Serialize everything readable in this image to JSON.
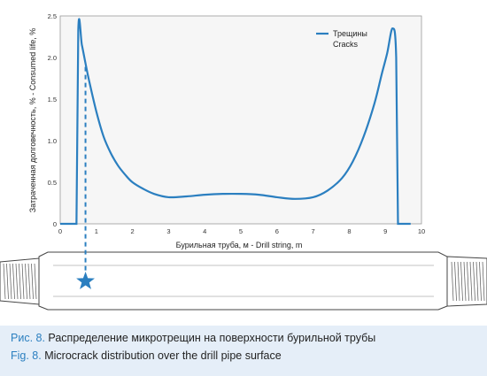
{
  "chart_data": {
    "type": "line",
    "xlabel": "Бурильная труба, м - Drill string, m",
    "ylabel": "Затраченная долговечность, % - Consumed life, %",
    "xlim": [
      0,
      10
    ],
    "ylim": [
      0,
      2.5
    ],
    "xticks": [
      "0",
      "1",
      "2",
      "3",
      "4",
      "5",
      "6",
      "7",
      "8",
      "9",
      "10"
    ],
    "yticks": [
      "0",
      "0.5",
      "1.0",
      "1.5",
      "2.0",
      "2.5"
    ],
    "grid": false,
    "legend_position": "top-right",
    "series": [
      {
        "name_ru": "Трещины",
        "name_en": "Cracks",
        "color": "#2b7fc0",
        "x": [
          0.0,
          0.45,
          0.5,
          0.6,
          0.7,
          0.8,
          1.0,
          1.2,
          1.4,
          1.6,
          1.8,
          2.0,
          2.3,
          2.6,
          3.0,
          3.5,
          4.0,
          4.5,
          5.0,
          5.5,
          6.0,
          6.5,
          7.0,
          7.4,
          7.8,
          8.1,
          8.4,
          8.7,
          8.9,
          9.05,
          9.2,
          9.3,
          9.35,
          9.4,
          9.7
        ],
        "y": [
          0.0,
          0.0,
          2.33,
          2.15,
          1.93,
          1.72,
          1.35,
          1.05,
          0.85,
          0.7,
          0.59,
          0.5,
          0.42,
          0.36,
          0.32,
          0.33,
          0.35,
          0.36,
          0.36,
          0.35,
          0.32,
          0.3,
          0.32,
          0.4,
          0.55,
          0.75,
          1.05,
          1.45,
          1.8,
          2.05,
          2.35,
          2.0,
          0.0,
          0.0,
          0.0
        ]
      }
    ],
    "annotation_marker_x": 0.7
  },
  "caption": {
    "fig_label_ru": "Рис. 8.",
    "text_ru": " Распределение микротрещин на поверхности бурильной трубы",
    "fig_label_en": "Fig. 8.",
    "text_en": " Microcrack distribution over the drill pipe surface"
  },
  "colors": {
    "accent": "#2b7fc0",
    "caption_bg": "#e5eef8"
  }
}
